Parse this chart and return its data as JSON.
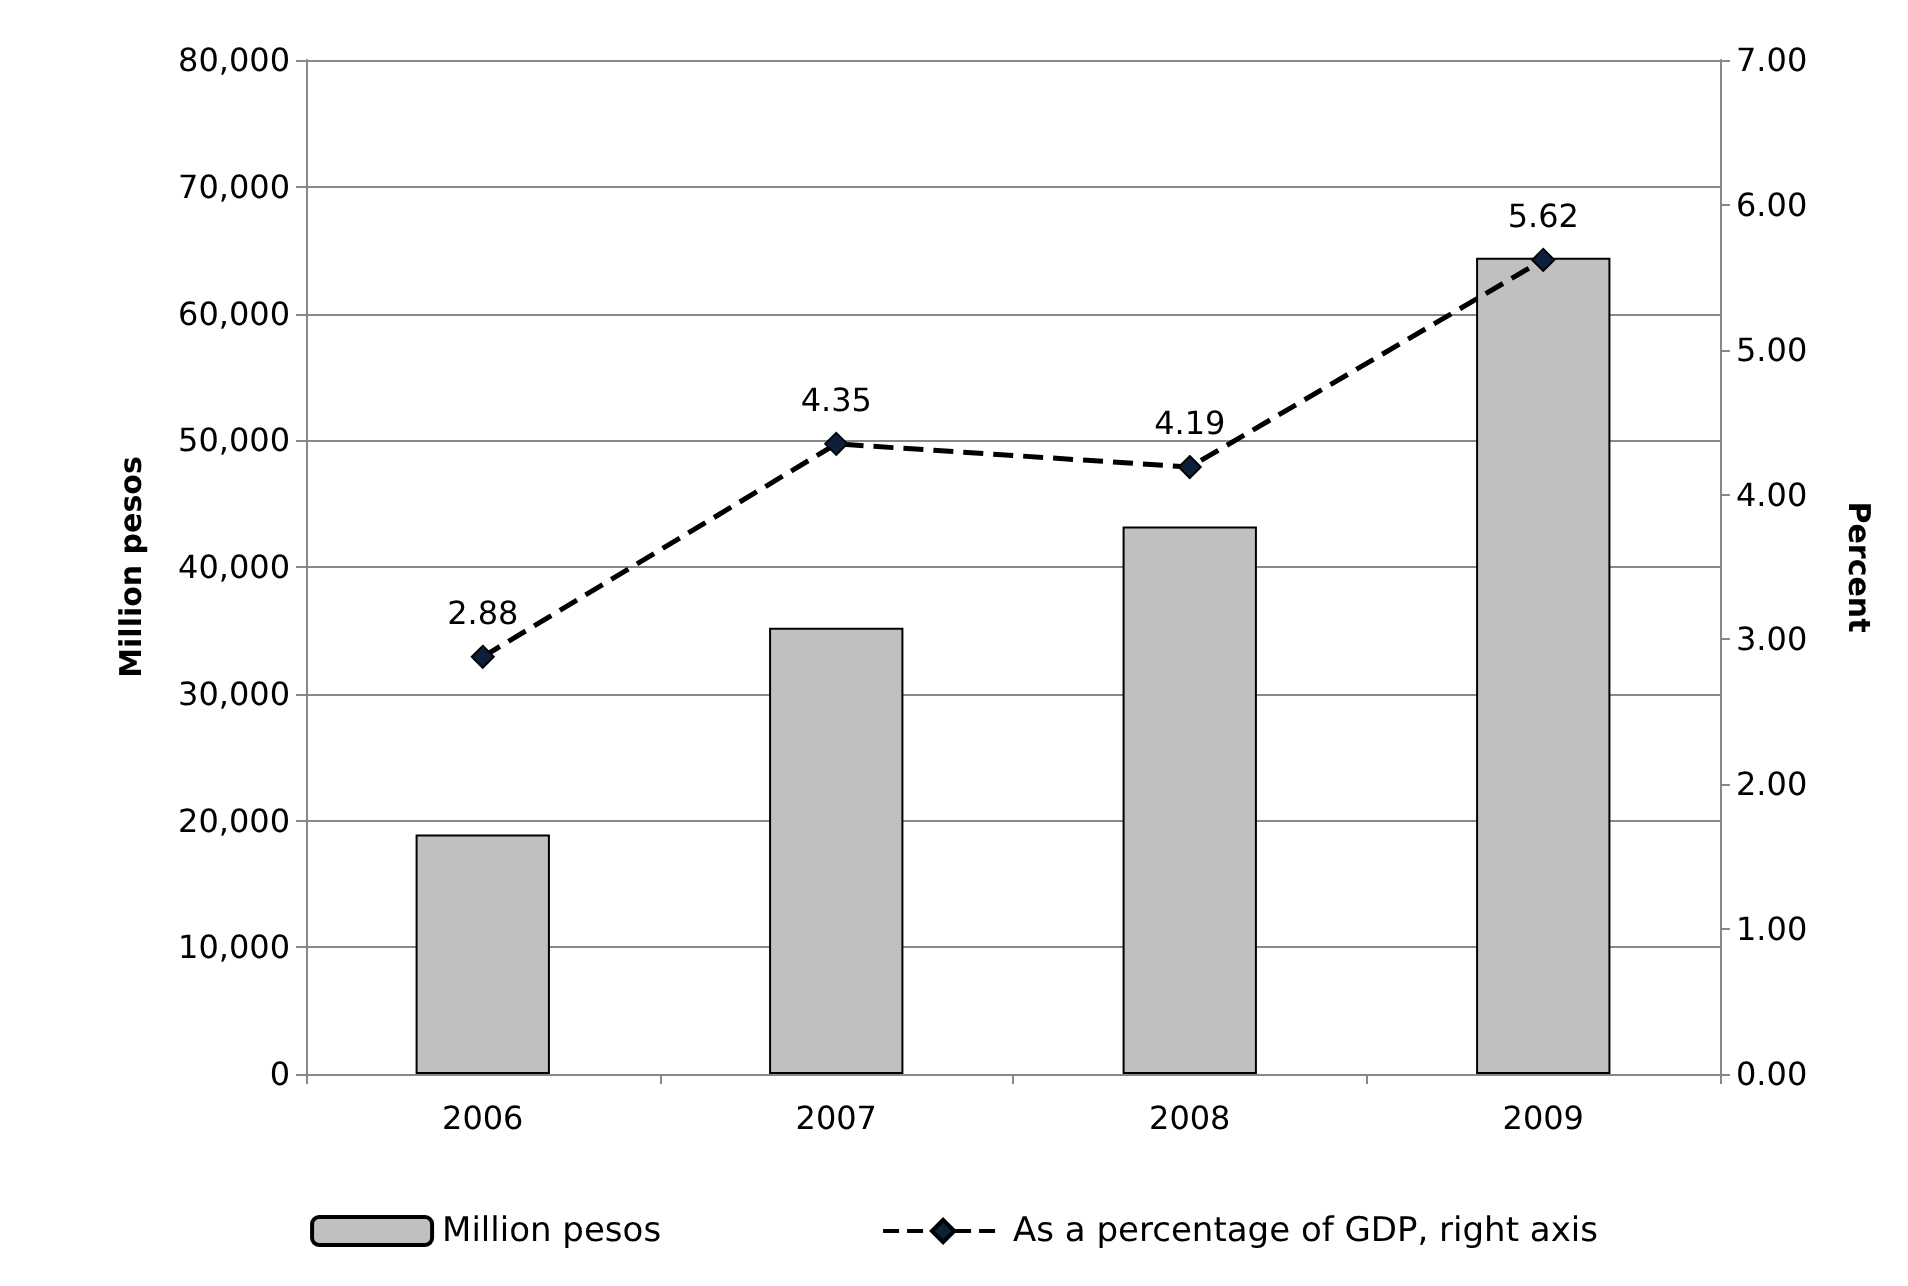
{
  "chart_data": {
    "type": "bar",
    "categories": [
      "2006",
      "2007",
      "2008",
      "2009"
    ],
    "ylabel": "Million pesos",
    "y2label": "Percent",
    "ylim": [
      0,
      80000
    ],
    "yticks": [
      {
        "value": 0,
        "label": "0"
      },
      {
        "value": 10000,
        "label": "10,000"
      },
      {
        "value": 20000,
        "label": "20,000"
      },
      {
        "value": 30000,
        "label": "30,000"
      },
      {
        "value": 40000,
        "label": "40,000"
      },
      {
        "value": 50000,
        "label": "50,000"
      },
      {
        "value": 60000,
        "label": "60,000"
      },
      {
        "value": 70000,
        "label": "70,000"
      },
      {
        "value": 80000,
        "label": "80,000"
      }
    ],
    "y2lim": [
      0,
      7
    ],
    "y2ticks": [
      {
        "value": 0,
        "label": "0.00"
      },
      {
        "value": 1,
        "label": "1.00"
      },
      {
        "value": 2,
        "label": "2.00"
      },
      {
        "value": 3,
        "label": "3.00"
      },
      {
        "value": 4,
        "label": "4.00"
      },
      {
        "value": 5,
        "label": "5.00"
      },
      {
        "value": 6,
        "label": "6.00"
      },
      {
        "value": 7,
        "label": "7.00"
      }
    ],
    "grid": "y",
    "legend": "bottom",
    "series": [
      {
        "name": "Million pesos",
        "color": "#c0c0c0",
        "values": [
          18900,
          35200,
          43200,
          64400
        ]
      },
      {
        "name": "As a percentage of GDP, right axis",
        "type": "line",
        "axis": "y2",
        "color": "#0d1f3c",
        "marker": "diamond",
        "line_style": "dashed",
        "values": [
          2.88,
          4.35,
          4.19,
          5.62
        ],
        "value_labels": [
          "2.88",
          "4.35",
          "4.19",
          "5.62"
        ]
      }
    ]
  }
}
